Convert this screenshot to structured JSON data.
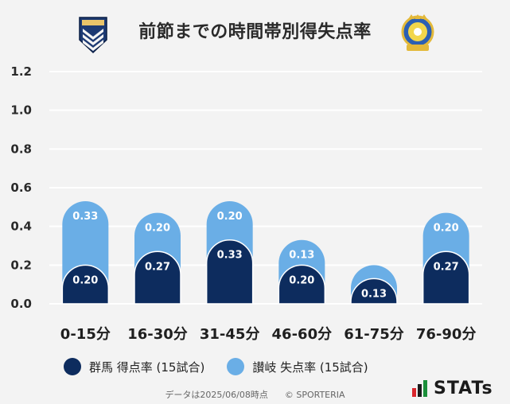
{
  "header": {
    "title": "前節までの時間帯別得失点率",
    "team_a_crest_text": "GUNMA",
    "team_b_crest_text": "KAMATAMARE"
  },
  "chart_data": {
    "type": "bar",
    "stacked": true,
    "categories": [
      "0-15分",
      "16-30分",
      "31-45分",
      "46-60分",
      "61-75分",
      "76-90分"
    ],
    "series": [
      {
        "name": "群馬 得点率 (15試合)",
        "values": [
          0.2,
          0.27,
          0.33,
          0.2,
          0.13,
          0.27
        ],
        "labels": [
          "0.20",
          "0.27",
          "0.33",
          "0.20",
          "0.13",
          "0.27"
        ],
        "color": "#0d2c5e"
      },
      {
        "name": "讃岐 失点率 (15試合)",
        "values": [
          0.33,
          0.2,
          0.2,
          0.13,
          0.07,
          0.2
        ],
        "labels": [
          "0.33",
          "0.20",
          "0.20",
          "0.13",
          "",
          "0.20"
        ],
        "color": "#6aaee6"
      }
    ],
    "ylim": [
      0,
      1.2
    ],
    "yticks": [
      "0.0",
      "0.2",
      "0.4",
      "0.6",
      "0.8",
      "1.0",
      "1.2"
    ],
    "grid": true,
    "legend": "bottom-left"
  },
  "footer": {
    "note": "データは2025/06/08時点",
    "copyright": "© SPORTERIA",
    "brand": "STATs"
  },
  "colors": {
    "background": "#f3f3f3",
    "grid": "#ffffff",
    "team_a": "#0d2c5e",
    "team_b": "#6aaee6",
    "bar_label": "#ffffff"
  }
}
